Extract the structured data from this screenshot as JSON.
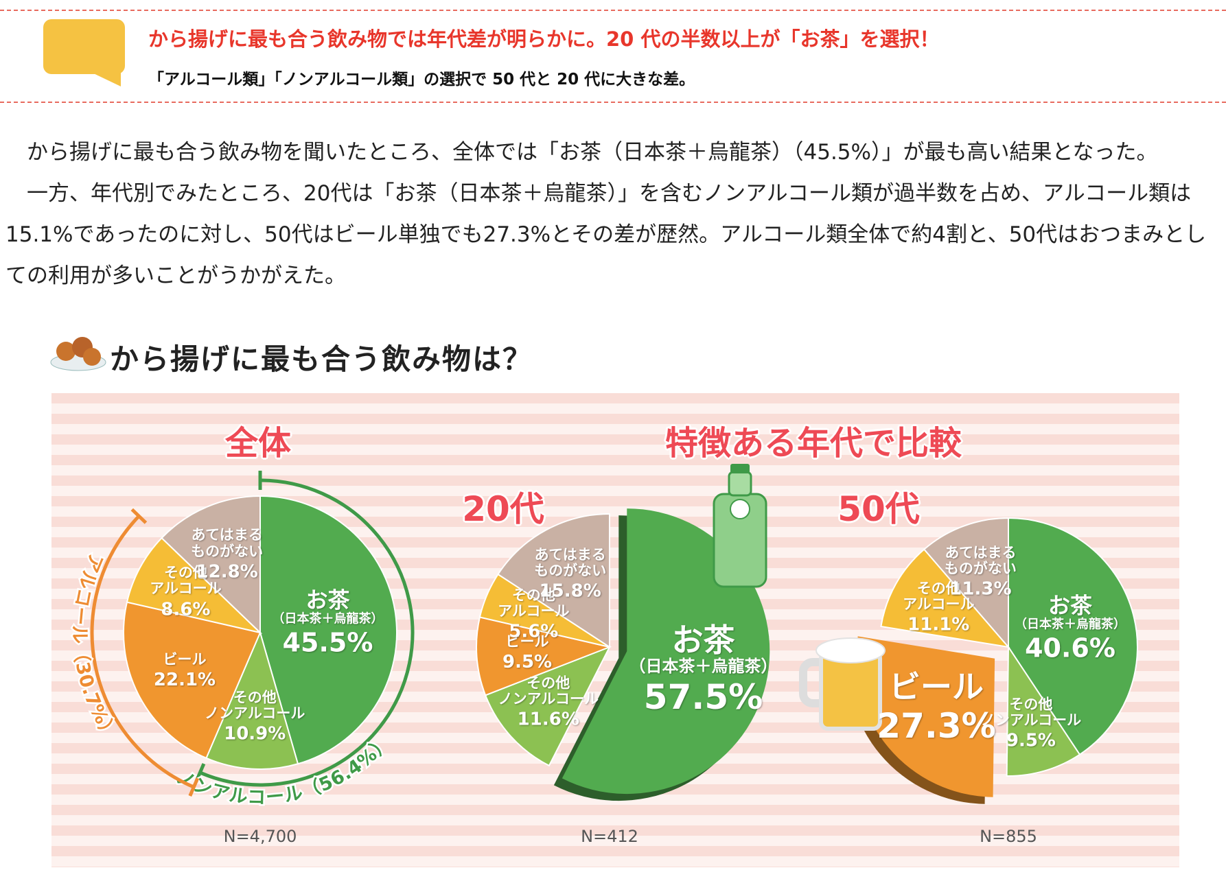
{
  "header": {
    "title": "から揚げに最も合う飲み物では年代差が明らかに。20 代の半数以上が「お茶」を選択！",
    "subtitle": "「アルコール類」「ノンアルコール類」の選択で 50 代と 20 代に大きな差。"
  },
  "paragraphs": [
    "から揚げに最も合う飲み物を聞いたところ、全体では「お茶（日本茶＋烏龍茶）（45.5%）」が最も高い結果となった。",
    "一方、年代別でみたところ、20代は「お茶（日本茶＋烏龍茶）」を含むノンアルコール類が過半数を占め、アルコール類は15.1%であったのに対し、50代はビール単独でも27.3%とその差が歴然。アルコール類全体で約4割と、50代はおつまみとしての利用が多いことがうかがえた。"
  ],
  "section_title": "から揚げに最も合う飲み物は？",
  "comparison_heading": "特徴ある年代で比較",
  "chart_data": [
    {
      "type": "pie",
      "title": "全体",
      "note": "（日本茶＋烏龍茶）",
      "categories": [
        "お茶",
        "その他\nノンアルコール",
        "ビール",
        "その他\nアルコール",
        "あてはまる\nものがない"
      ],
      "values": [
        45.5,
        10.9,
        22.1,
        8.6,
        12.8
      ],
      "value_labels": [
        "45.5%",
        "10.9%",
        "22.1%",
        "8.6%",
        "12.8%"
      ],
      "colors": [
        "#52ab4f",
        "#8cc152",
        "#f0962f",
        "#f5bd36",
        "#c9b1a4"
      ],
      "group_labels": [
        "ノンアルコール（56.4%）",
        "アルコール（30.7%）"
      ],
      "sample": "N=4,700"
    },
    {
      "type": "pie",
      "title": "20代",
      "note": "（日本茶＋烏龍茶）",
      "categories": [
        "お茶",
        "その他\nノンアルコール",
        "ビール",
        "その他\nアルコール",
        "あてはまる\nものがない"
      ],
      "values": [
        57.5,
        11.6,
        9.5,
        5.6,
        15.8
      ],
      "value_labels": [
        "57.5%",
        "11.6%",
        "9.5%",
        "5.6%",
        "15.8%"
      ],
      "colors": [
        "#52ab4f",
        "#8cc152",
        "#f0962f",
        "#f5bd36",
        "#c9b1a4"
      ],
      "highlight": 0,
      "sample": "N=412"
    },
    {
      "type": "pie",
      "title": "50代",
      "note": "（日本茶＋烏龍茶）",
      "categories": [
        "お茶",
        "その他\nノンアルコール",
        "ビール",
        "その他\nアルコール",
        "あてはまる\nものがない"
      ],
      "values": [
        40.6,
        9.5,
        27.3,
        11.1,
        11.3
      ],
      "value_labels": [
        "40.6%",
        "9.5%",
        "27.3%",
        "11.1%",
        "11.3%"
      ],
      "colors": [
        "#52ab4f",
        "#8cc152",
        "#f0962f",
        "#f5bd36",
        "#c9b1a4"
      ],
      "highlight": 2,
      "sample": "N=855"
    }
  ]
}
